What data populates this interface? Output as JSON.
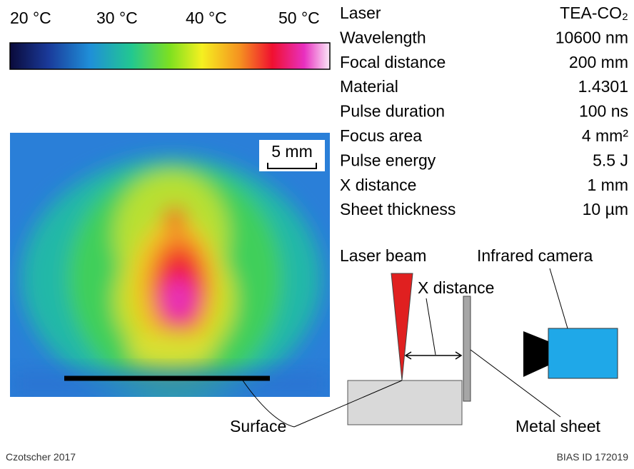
{
  "colorbar": {
    "labels": [
      "20 °C",
      "30 °C",
      "40 °C",
      "50 °C"
    ]
  },
  "thermal_image": {
    "scale_bar": "5 mm"
  },
  "parameters": {
    "rows": [
      [
        "Laser",
        "TEA-CO₂"
      ],
      [
        "Wavelength",
        "10600 nm"
      ],
      [
        "Focal distance",
        "200 mm"
      ],
      [
        "Material",
        "1.4301"
      ],
      [
        "Pulse duration",
        "100 ns"
      ],
      [
        "Focus area",
        "4 mm²"
      ],
      [
        "Pulse energy",
        "5.5 J"
      ],
      [
        "X distance",
        "1 mm"
      ],
      [
        "Sheet thickness",
        "10 µm"
      ]
    ]
  },
  "diagram": {
    "laser_beam": "Laser beam",
    "infrared_camera": "Infrared camera",
    "x_distance": "X distance",
    "surface": "Surface",
    "metal_sheet": "Metal sheet"
  },
  "footer": {
    "author": "Czotscher 2017",
    "id": "BIAS ID 172019"
  }
}
